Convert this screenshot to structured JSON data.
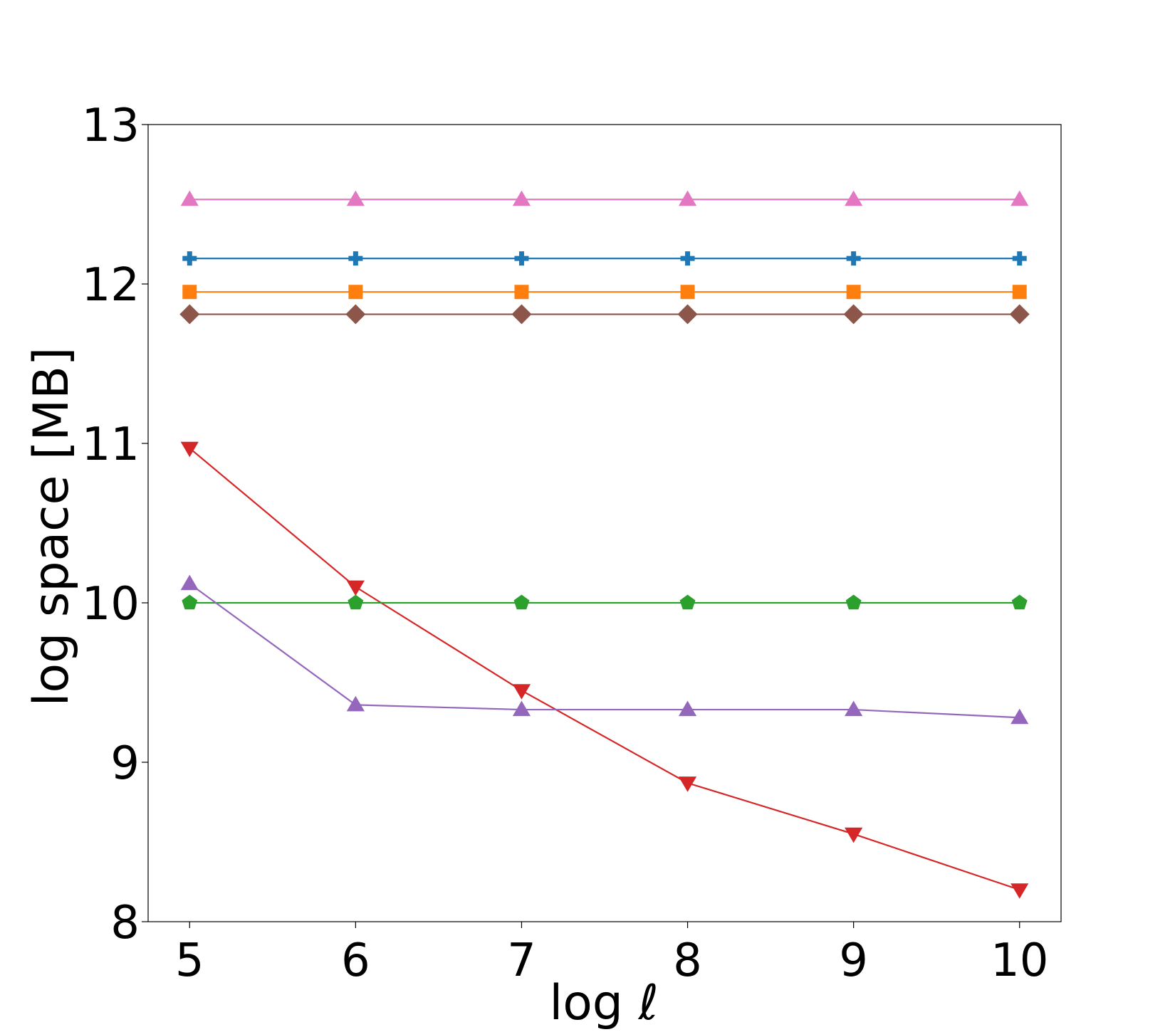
{
  "chart_data": {
    "type": "line",
    "title": "",
    "xlabel": "log ℓ",
    "ylabel": "log space [MB]",
    "xlim": [
      4.75,
      10.25
    ],
    "ylim": [
      8,
      13
    ],
    "xticks": [
      5,
      6,
      7,
      8,
      9,
      10
    ],
    "yticks": [
      8,
      9,
      10,
      11,
      12,
      13
    ],
    "grid": false,
    "x": [
      5,
      6,
      7,
      8,
      9,
      10
    ],
    "series": [
      {
        "color": "#e377c2",
        "marker": "triangle-up",
        "values": [
          12.53,
          12.53,
          12.53,
          12.53,
          12.53,
          12.53
        ]
      },
      {
        "color": "#1f77b4",
        "marker": "plus",
        "values": [
          12.16,
          12.16,
          12.16,
          12.16,
          12.16,
          12.16
        ]
      },
      {
        "color": "#ff7f0e",
        "marker": "square",
        "values": [
          11.95,
          11.95,
          11.95,
          11.95,
          11.95,
          11.95
        ]
      },
      {
        "color": "#8c564b",
        "marker": "diamond",
        "values": [
          11.81,
          11.81,
          11.81,
          11.81,
          11.81,
          11.81
        ]
      },
      {
        "color": "#d62728",
        "marker": "triangle-down",
        "values": [
          10.97,
          10.1,
          9.45,
          8.87,
          8.55,
          8.2
        ]
      },
      {
        "color": "#2ca02c",
        "marker": "pentagon",
        "values": [
          10.0,
          10.0,
          10.0,
          10.0,
          10.0,
          10.0
        ]
      },
      {
        "color": "#9467bd",
        "marker": "triangle-up",
        "values": [
          10.12,
          9.36,
          9.33,
          9.33,
          9.33,
          9.28
        ]
      }
    ]
  }
}
